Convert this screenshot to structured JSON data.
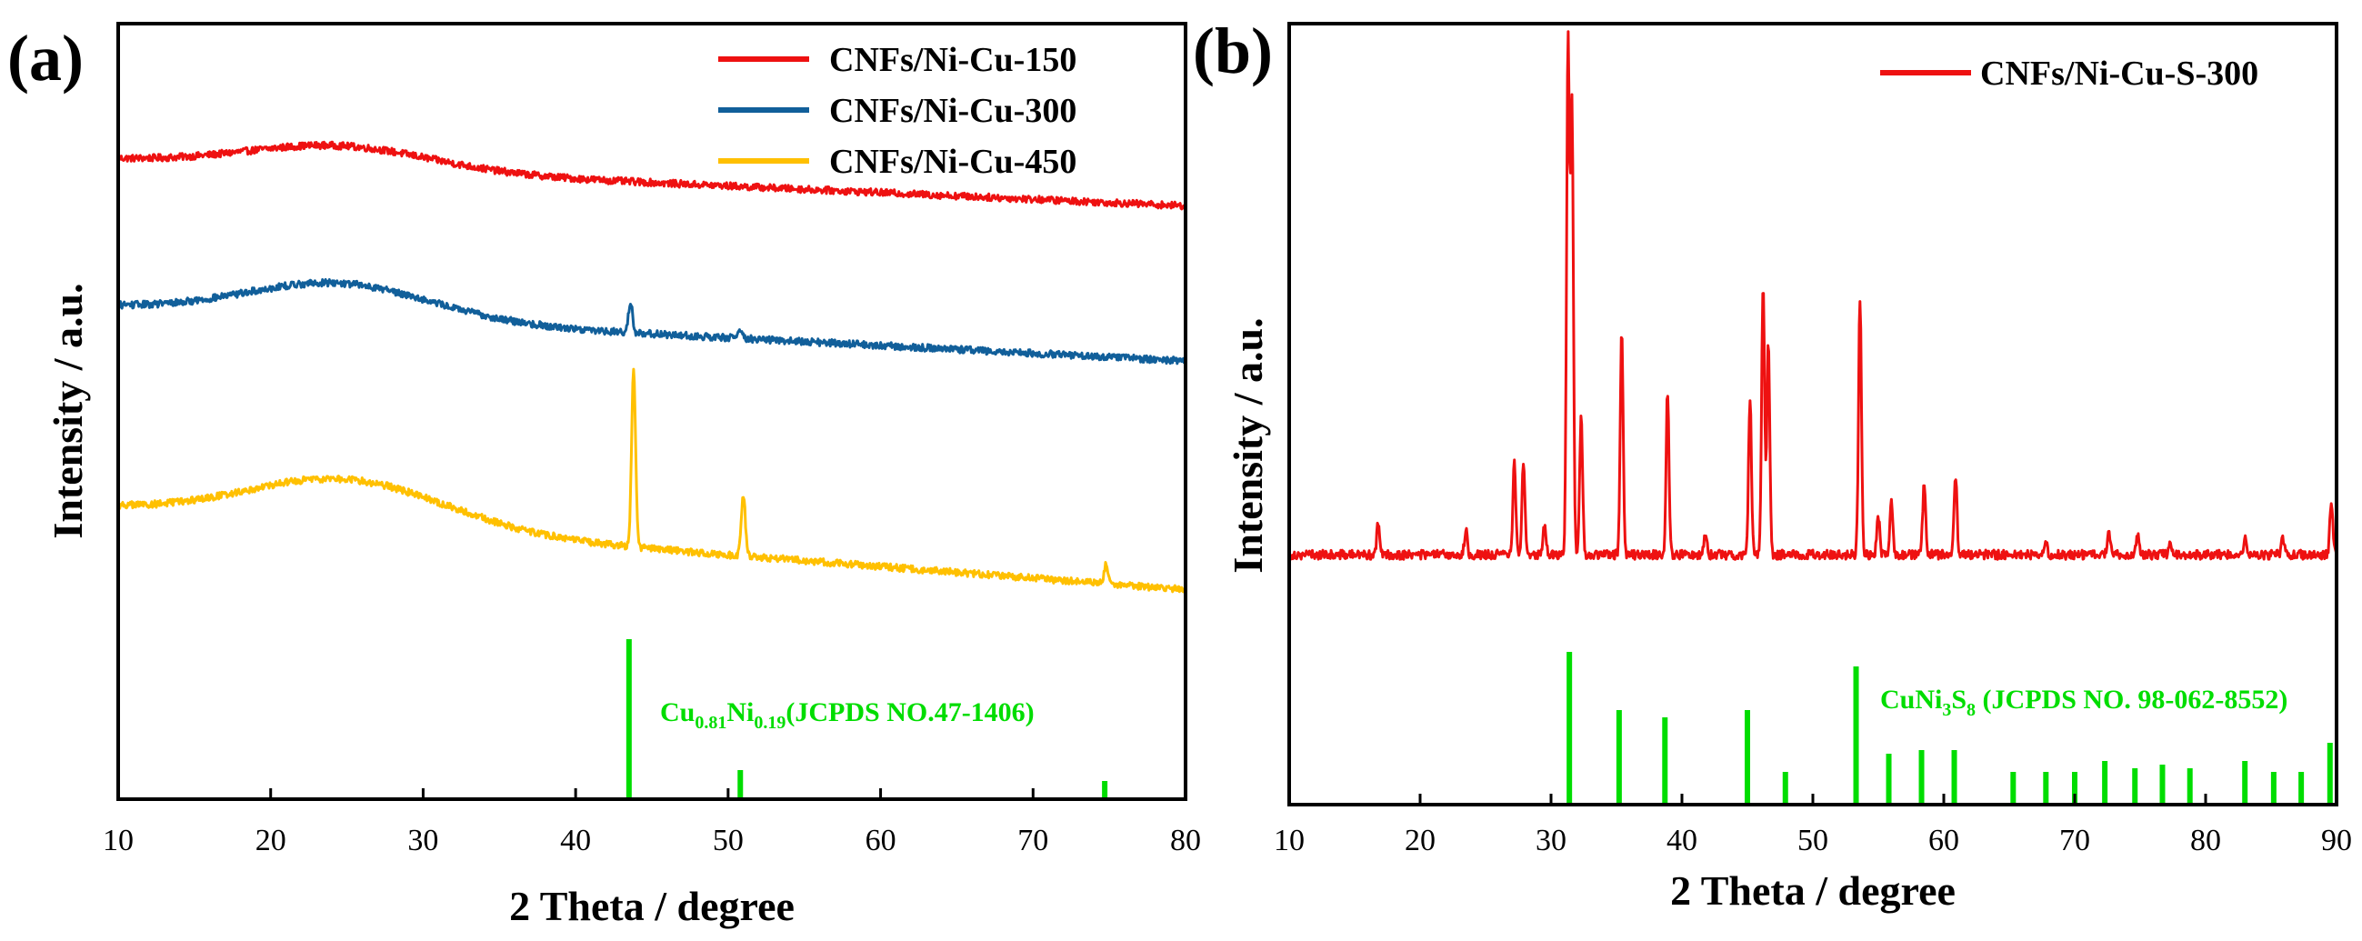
{
  "chart_data": [
    {
      "panel": "(a)",
      "type": "line",
      "title": "",
      "xlabel": "2 Theta / degree",
      "ylabel": "Intensity / a.u.",
      "xlim": [
        10,
        80
      ],
      "ylim": [
        0,
        100
      ],
      "xticks": [
        10,
        20,
        30,
        40,
        50,
        60,
        70,
        80
      ],
      "yticks_visible": false,
      "legend_position": "top-right",
      "series": [
        {
          "name": "CNFs/Ni-Cu-150",
          "color": "#ee1111",
          "offset": 81,
          "hump_amp": 3,
          "hump_center": 24.5,
          "hump_width": 6,
          "tail_start": 1.5,
          "tail_end": -4.5,
          "peaks": []
        },
        {
          "name": "CNFs/Ni-Cu-300",
          "color": "#115f9a",
          "offset": 62,
          "hump_amp": 4.5,
          "hump_center": 24.5,
          "hump_width": 6,
          "tail_start": 1.5,
          "tail_end": -5.5,
          "peaks": [
            {
              "x": 43.6,
              "h": 4
            },
            {
              "x": 50.8,
              "h": 1.2
            }
          ]
        },
        {
          "name": "CNFs/Ni-Cu-450",
          "color": "#ffc000",
          "offset": 36,
          "hump_amp": 6,
          "hump_center": 25,
          "hump_width": 6.5,
          "tail_start": 1.5,
          "tail_end": -9,
          "peaks": [
            {
              "x": 43.8,
              "h": 23
            },
            {
              "x": 51.0,
              "h": 8
            },
            {
              "x": 74.8,
              "h": 2.5
            }
          ]
        }
      ],
      "reference": {
        "label_prefix": "Cu",
        "sub1": "0.81",
        "mid": "Ni",
        "sub2": "0.19",
        "label_suffix": "(JCPDS NO.47-1406)",
        "color": "#00dd00",
        "lines": [
          {
            "x": 43.5,
            "h": 22
          },
          {
            "x": 50.8,
            "h": 4
          },
          {
            "x": 74.7,
            "h": 2.5
          }
        ]
      }
    },
    {
      "panel": "(b)",
      "type": "line",
      "title": "",
      "xlabel": "2 Theta / degree",
      "ylabel": "Intensity / a.u.",
      "xlim": [
        10,
        90
      ],
      "ylim": [
        0,
        100
      ],
      "xticks": [
        10,
        20,
        30,
        40,
        50,
        60,
        70,
        80,
        90
      ],
      "yticks_visible": false,
      "legend_position": "top-right",
      "series": [
        {
          "name": "CNFs/Ni-Cu-S-300",
          "color": "#ee1111",
          "offset": 32,
          "hump_amp": 0,
          "hump_center": 0,
          "hump_width": 1,
          "tail_start": 0,
          "tail_end": 0,
          "peaks": [
            {
              "x": 16.8,
              "h": 4
            },
            {
              "x": 23.5,
              "h": 3
            },
            {
              "x": 27.2,
              "h": 12
            },
            {
              "x": 27.9,
              "h": 12
            },
            {
              "x": 29.5,
              "h": 4
            },
            {
              "x": 31.3,
              "h": 66
            },
            {
              "x": 31.6,
              "h": 57
            },
            {
              "x": 32.3,
              "h": 18
            },
            {
              "x": 35.4,
              "h": 29
            },
            {
              "x": 38.9,
              "h": 21
            },
            {
              "x": 41.8,
              "h": 3
            },
            {
              "x": 45.2,
              "h": 20
            },
            {
              "x": 46.2,
              "h": 35
            },
            {
              "x": 46.6,
              "h": 27
            },
            {
              "x": 53.6,
              "h": 33
            },
            {
              "x": 55.0,
              "h": 5
            },
            {
              "x": 56.0,
              "h": 7
            },
            {
              "x": 58.5,
              "h": 9
            },
            {
              "x": 60.9,
              "h": 10
            },
            {
              "x": 67.8,
              "h": 1.5
            },
            {
              "x": 72.6,
              "h": 3
            },
            {
              "x": 74.8,
              "h": 2.5
            },
            {
              "x": 77.3,
              "h": 1.5
            },
            {
              "x": 83.0,
              "h": 2
            },
            {
              "x": 85.9,
              "h": 2
            },
            {
              "x": 89.6,
              "h": 7
            }
          ]
        }
      ],
      "reference": {
        "label_prefix": "CuNi",
        "sub1": "3",
        "mid": "S",
        "sub2": "8",
        "label_suffix": " (JCPDS NO. 98-062-8552)",
        "color": "#00dd00",
        "lines": [
          {
            "x": 31.4,
            "h": 21
          },
          {
            "x": 35.2,
            "h": 13
          },
          {
            "x": 38.7,
            "h": 12
          },
          {
            "x": 45.0,
            "h": 13
          },
          {
            "x": 47.9,
            "h": 4.5
          },
          {
            "x": 53.3,
            "h": 19
          },
          {
            "x": 55.8,
            "h": 7
          },
          {
            "x": 58.3,
            "h": 7.5
          },
          {
            "x": 60.8,
            "h": 7.5
          },
          {
            "x": 65.3,
            "h": 4.5
          },
          {
            "x": 67.8,
            "h": 4.5
          },
          {
            "x": 70.0,
            "h": 4.5
          },
          {
            "x": 72.3,
            "h": 6
          },
          {
            "x": 74.6,
            "h": 5
          },
          {
            "x": 76.7,
            "h": 5.5
          },
          {
            "x": 78.8,
            "h": 5
          },
          {
            "x": 83.0,
            "h": 6
          },
          {
            "x": 85.2,
            "h": 4.5
          },
          {
            "x": 87.3,
            "h": 4.5
          },
          {
            "x": 89.5,
            "h": 8.5
          }
        ]
      }
    }
  ]
}
